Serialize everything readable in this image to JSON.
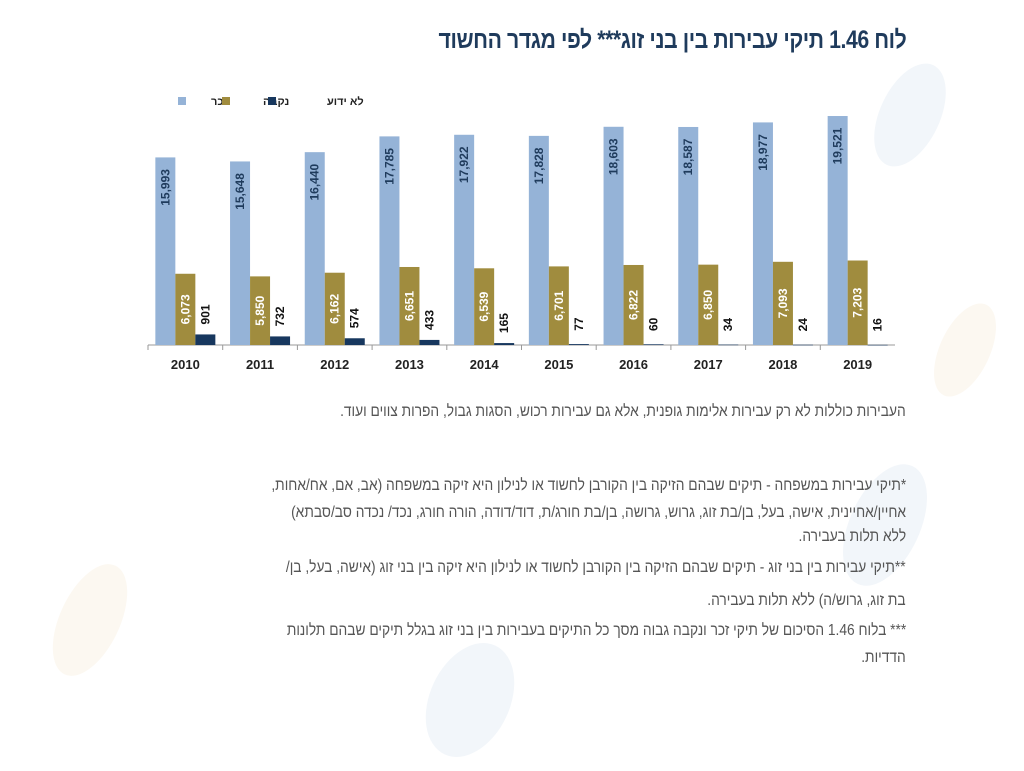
{
  "title": "לוח 1.46 תיקי עבירות בין בני זוג*** לפי מגדר החשוד",
  "chart_data": {
    "type": "bar",
    "categories": [
      "2010",
      "2011",
      "2012",
      "2013",
      "2014",
      "2015",
      "2016",
      "2017",
      "2018",
      "2019"
    ],
    "series": [
      {
        "name": "זכר",
        "color": "#95b3d7",
        "values": [
          15993,
          15648,
          16440,
          17785,
          17922,
          17828,
          18603,
          18587,
          18977,
          19521
        ]
      },
      {
        "name": "נקבה",
        "color": "#a08c3e",
        "values": [
          6073,
          5850,
          6162,
          6651,
          6539,
          6701,
          6822,
          6850,
          7093,
          7203
        ]
      },
      {
        "name": "לא ידוע",
        "color": "#17375e",
        "values": [
          901,
          732,
          574,
          433,
          165,
          77,
          60,
          34,
          24,
          16
        ]
      }
    ],
    "ylim": [
      0,
      20000
    ],
    "grid": false,
    "legend": "top-left",
    "data_labels": true
  },
  "notes": [
    "העבירות כוללות לא רק עבירות אלימות גופנית, אלא גם עבירות רכוש, הסגות גבול, הפרות צווים ועוד.",
    "*תיקי עבירות במשפחה - תיקים שבהם הזיקה בין הקורבן לחשוד או לנילון היא זיקה במשפחה (אב, אם, אח/אחות,",
    "אחיין/אחיינית, אישה, בעל, בן/בת זוג, גרוש, גרושה, בן/בת חורג/ת, דוד/דודה, הורה חורג, נכד/ נכדה סב/סבתא)",
    "ללא תלות בעבירה.",
    "**תיקי עבירות בין בני זוג - תיקים שבהם הזיקה בין הקורבן לחשוד או לנילון היא זיקה בין בני זוג (אישה, בעל, בן/",
    "בת זוג, גרוש/ה) ללא תלות בעבירה.",
    "*** בלוח 1.46 הסיכום של תיקי זכר ונקבה גבוה מסך כל התיקים בעבירות בין בני זוג בגלל תיקים שבהם תלונות",
    "הדדיות."
  ]
}
